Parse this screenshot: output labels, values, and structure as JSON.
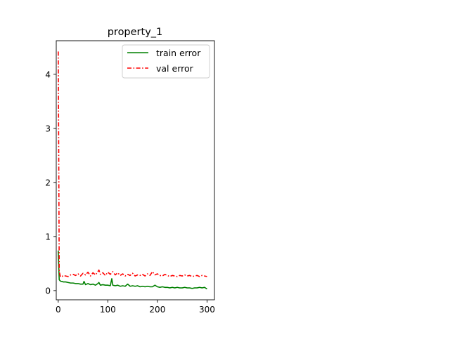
{
  "chart_data": {
    "type": "line",
    "title": "property_1",
    "xlabel": "",
    "ylabel": "",
    "xlim": [
      -4,
      315
    ],
    "ylim": [
      -0.17,
      4.62
    ],
    "xticks": [
      0,
      100,
      200,
      300
    ],
    "yticks": [
      0,
      1,
      2,
      3,
      4
    ],
    "xtick_labels": [
      "0",
      "100",
      "200",
      "300"
    ],
    "ytick_labels": [
      "0",
      "1",
      "2",
      "3",
      "4"
    ],
    "grid": false,
    "legend_position": "top-right",
    "series": [
      {
        "name": "train error",
        "color": "#008000",
        "linestyle": "solid",
        "x": [
          0,
          1,
          2,
          4,
          6,
          8,
          10,
          15,
          20,
          25,
          30,
          35,
          40,
          45,
          50,
          52,
          55,
          60,
          65,
          70,
          75,
          80,
          82,
          85,
          90,
          95,
          100,
          105,
          108,
          110,
          115,
          120,
          125,
          130,
          135,
          140,
          145,
          150,
          155,
          160,
          165,
          170,
          175,
          180,
          185,
          190,
          195,
          200,
          205,
          210,
          215,
          220,
          225,
          230,
          235,
          240,
          245,
          250,
          255,
          260,
          265,
          270,
          275,
          280,
          285,
          290,
          295,
          300
        ],
        "y": [
          0.74,
          0.45,
          0.2,
          0.18,
          0.17,
          0.17,
          0.16,
          0.16,
          0.15,
          0.14,
          0.14,
          0.13,
          0.13,
          0.12,
          0.12,
          0.17,
          0.11,
          0.13,
          0.11,
          0.12,
          0.1,
          0.13,
          0.15,
          0.1,
          0.11,
          0.1,
          0.1,
          0.09,
          0.22,
          0.1,
          0.09,
          0.1,
          0.08,
          0.09,
          0.08,
          0.12,
          0.08,
          0.09,
          0.08,
          0.09,
          0.07,
          0.08,
          0.07,
          0.08,
          0.07,
          0.07,
          0.1,
          0.07,
          0.06,
          0.07,
          0.06,
          0.06,
          0.05,
          0.06,
          0.05,
          0.06,
          0.05,
          0.05,
          0.06,
          0.05,
          0.05,
          0.04,
          0.05,
          0.05,
          0.06,
          0.05,
          0.06,
          0.03
        ]
      },
      {
        "name": "val error",
        "color": "#ff0000",
        "linestyle": "dashdot",
        "x": [
          0,
          1,
          2,
          4,
          6,
          8,
          10,
          15,
          20,
          25,
          30,
          35,
          40,
          45,
          50,
          55,
          60,
          65,
          70,
          75,
          80,
          82,
          85,
          90,
          95,
          100,
          105,
          110,
          115,
          120,
          125,
          130,
          135,
          140,
          145,
          150,
          155,
          160,
          165,
          170,
          175,
          180,
          185,
          190,
          195,
          200,
          205,
          210,
          215,
          220,
          225,
          230,
          235,
          240,
          245,
          250,
          255,
          260,
          265,
          270,
          275,
          280,
          285,
          290,
          295,
          300
        ],
        "y": [
          4.42,
          2.5,
          0.36,
          0.27,
          0.25,
          0.26,
          0.28,
          0.27,
          0.26,
          0.29,
          0.3,
          0.28,
          0.31,
          0.27,
          0.32,
          0.29,
          0.34,
          0.27,
          0.33,
          0.29,
          0.35,
          0.38,
          0.3,
          0.33,
          0.28,
          0.34,
          0.3,
          0.35,
          0.29,
          0.33,
          0.28,
          0.31,
          0.27,
          0.3,
          0.28,
          0.32,
          0.27,
          0.29,
          0.28,
          0.3,
          0.27,
          0.31,
          0.28,
          0.35,
          0.29,
          0.31,
          0.28,
          0.27,
          0.3,
          0.28,
          0.26,
          0.28,
          0.27,
          0.26,
          0.28,
          0.27,
          0.29,
          0.27,
          0.28,
          0.26,
          0.27,
          0.28,
          0.26,
          0.28,
          0.27,
          0.26
        ]
      }
    ]
  }
}
